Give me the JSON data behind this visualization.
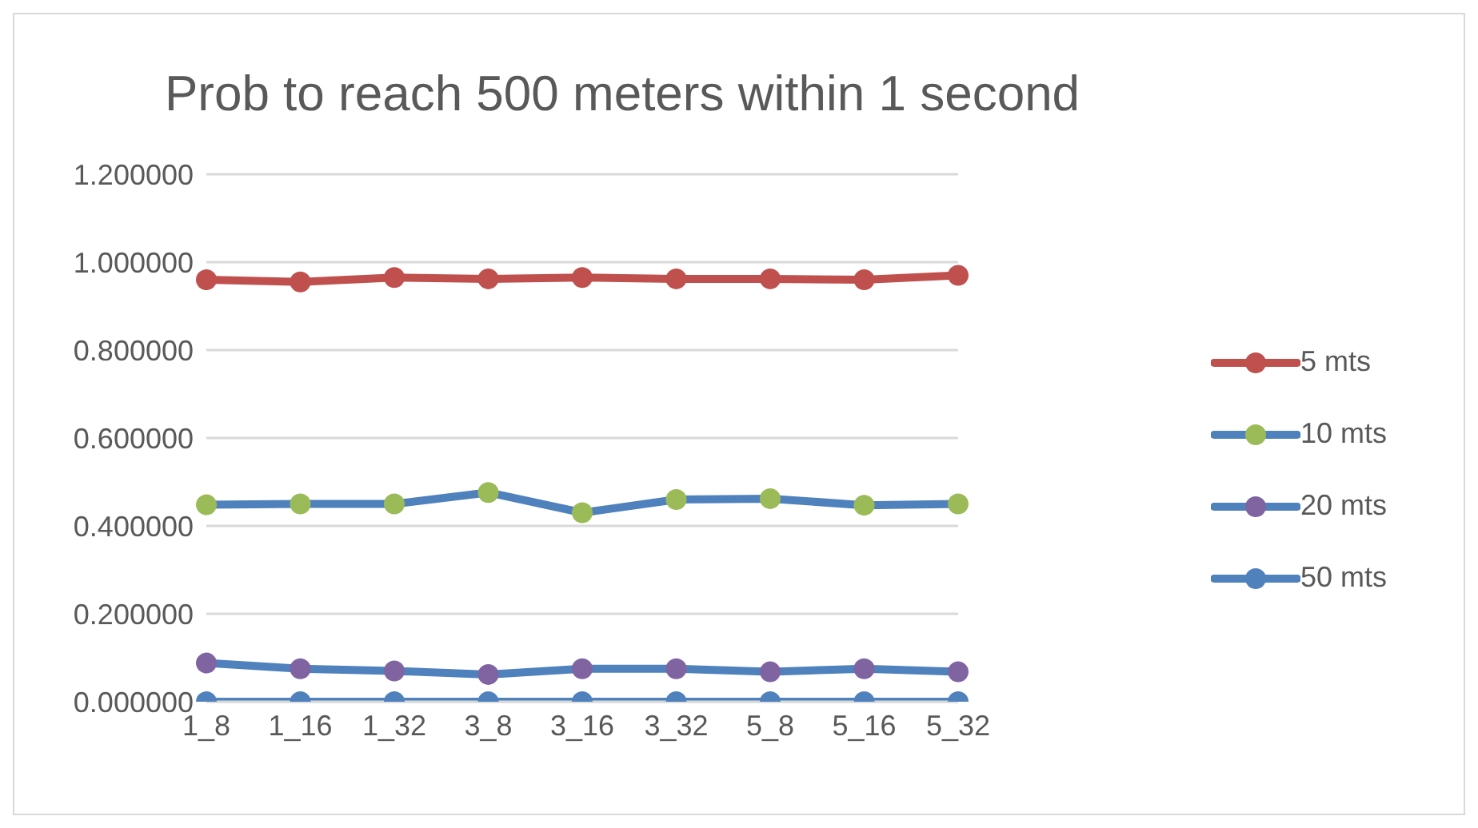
{
  "chart_data": {
    "type": "line",
    "title": "Prob to reach 500 meters within 1 second",
    "categories": [
      "1_8",
      "1_16",
      "1_32",
      "3_8",
      "3_16",
      "3_32",
      "5_8",
      "5_16",
      "5_32"
    ],
    "series": [
      {
        "name": "5 mts",
        "color": "#c0504d",
        "colors": [
          "#c0504d",
          "#c0504d",
          "#c0504d",
          "#c0504d",
          "#c0504d",
          "#c0504d",
          "#c0504d",
          "#c0504d",
          "#c0504d"
        ],
        "values": [
          0.96,
          0.955,
          0.965,
          0.962,
          0.965,
          0.962,
          0.962,
          0.96,
          0.97
        ]
      },
      {
        "name": "10 mts",
        "color": "#4f81bd",
        "colors": [
          "#9bbb59",
          "#9bbb59",
          "#9bbb59",
          "#9bbb59",
          "#9bbb59",
          "#9bbb59",
          "#9bbb59",
          "#9bbb59",
          "#9bbb59"
        ],
        "values": [
          0.448,
          0.45,
          0.45,
          0.476,
          0.43,
          0.46,
          0.462,
          0.447,
          0.45
        ]
      },
      {
        "name": "20 mts",
        "color": "#4f81bd",
        "colors": [
          "#8064a2",
          "#8064a2",
          "#8064a2",
          "#8064a2",
          "#8064a2",
          "#8064a2",
          "#8064a2",
          "#8064a2",
          "#8064a2"
        ],
        "values": [
          0.088,
          0.075,
          0.07,
          0.062,
          0.075,
          0.075,
          0.068,
          0.075,
          0.068
        ]
      },
      {
        "name": "50 mts",
        "color": "#4f81bd",
        "colors": [
          "#4f81bd",
          "#4f81bd",
          "#4f81bd",
          "#4f81bd",
          "#4f81bd",
          "#4f81bd",
          "#4f81bd",
          "#4f81bd",
          "#4f81bd"
        ],
        "values": [
          0,
          0,
          0,
          0,
          0,
          0,
          0,
          0,
          0
        ]
      }
    ],
    "ylim": [
      0,
      1.2
    ],
    "yticks": [
      {
        "value": 0,
        "label": "0.000000"
      },
      {
        "value": 0.2,
        "label": "0.200000"
      },
      {
        "value": 0.4,
        "label": "0.400000"
      },
      {
        "value": 0.6,
        "label": "0.600000"
      },
      {
        "value": 0.8,
        "label": "0.800000"
      },
      {
        "value": 1,
        "label": "1.000000"
      },
      {
        "value": 1.2,
        "label": "1.200000"
      }
    ],
    "grid": "y",
    "legend": "right",
    "marker": "circle",
    "line_style": "solid"
  }
}
